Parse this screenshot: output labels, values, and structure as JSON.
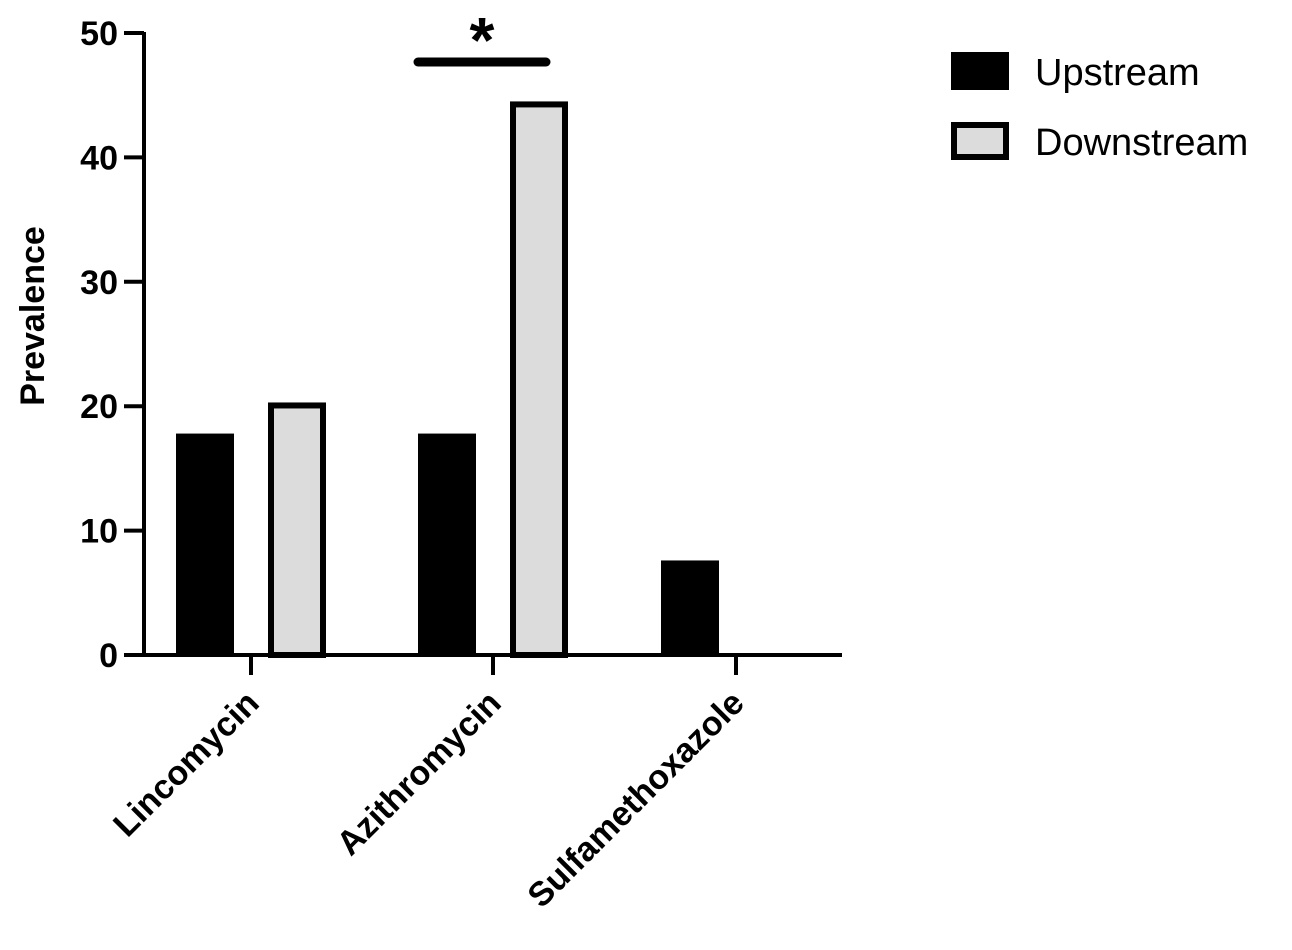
{
  "chart_data": {
    "type": "bar",
    "categories": [
      "Lincomycin",
      "Azithromycin",
      "Sulfamethoxazole"
    ],
    "series": [
      {
        "name": "Upstream",
        "values": [
          17.8,
          17.8,
          7.6
        ],
        "color": "#000000"
      },
      {
        "name": "Downstream",
        "values": [
          20.3,
          44.5,
          0
        ],
        "color": "#dcdcdc"
      }
    ],
    "xlabel": "",
    "ylabel": "Prevalence",
    "ylim": [
      0,
      50
    ],
    "yticks": [
      "0",
      "10",
      "20",
      "30",
      "40",
      "50"
    ],
    "grid": false,
    "legend_position": "top-right",
    "annotations": [
      {
        "text": "*",
        "category": "Azithromycin",
        "type": "significance-bracket"
      }
    ]
  }
}
